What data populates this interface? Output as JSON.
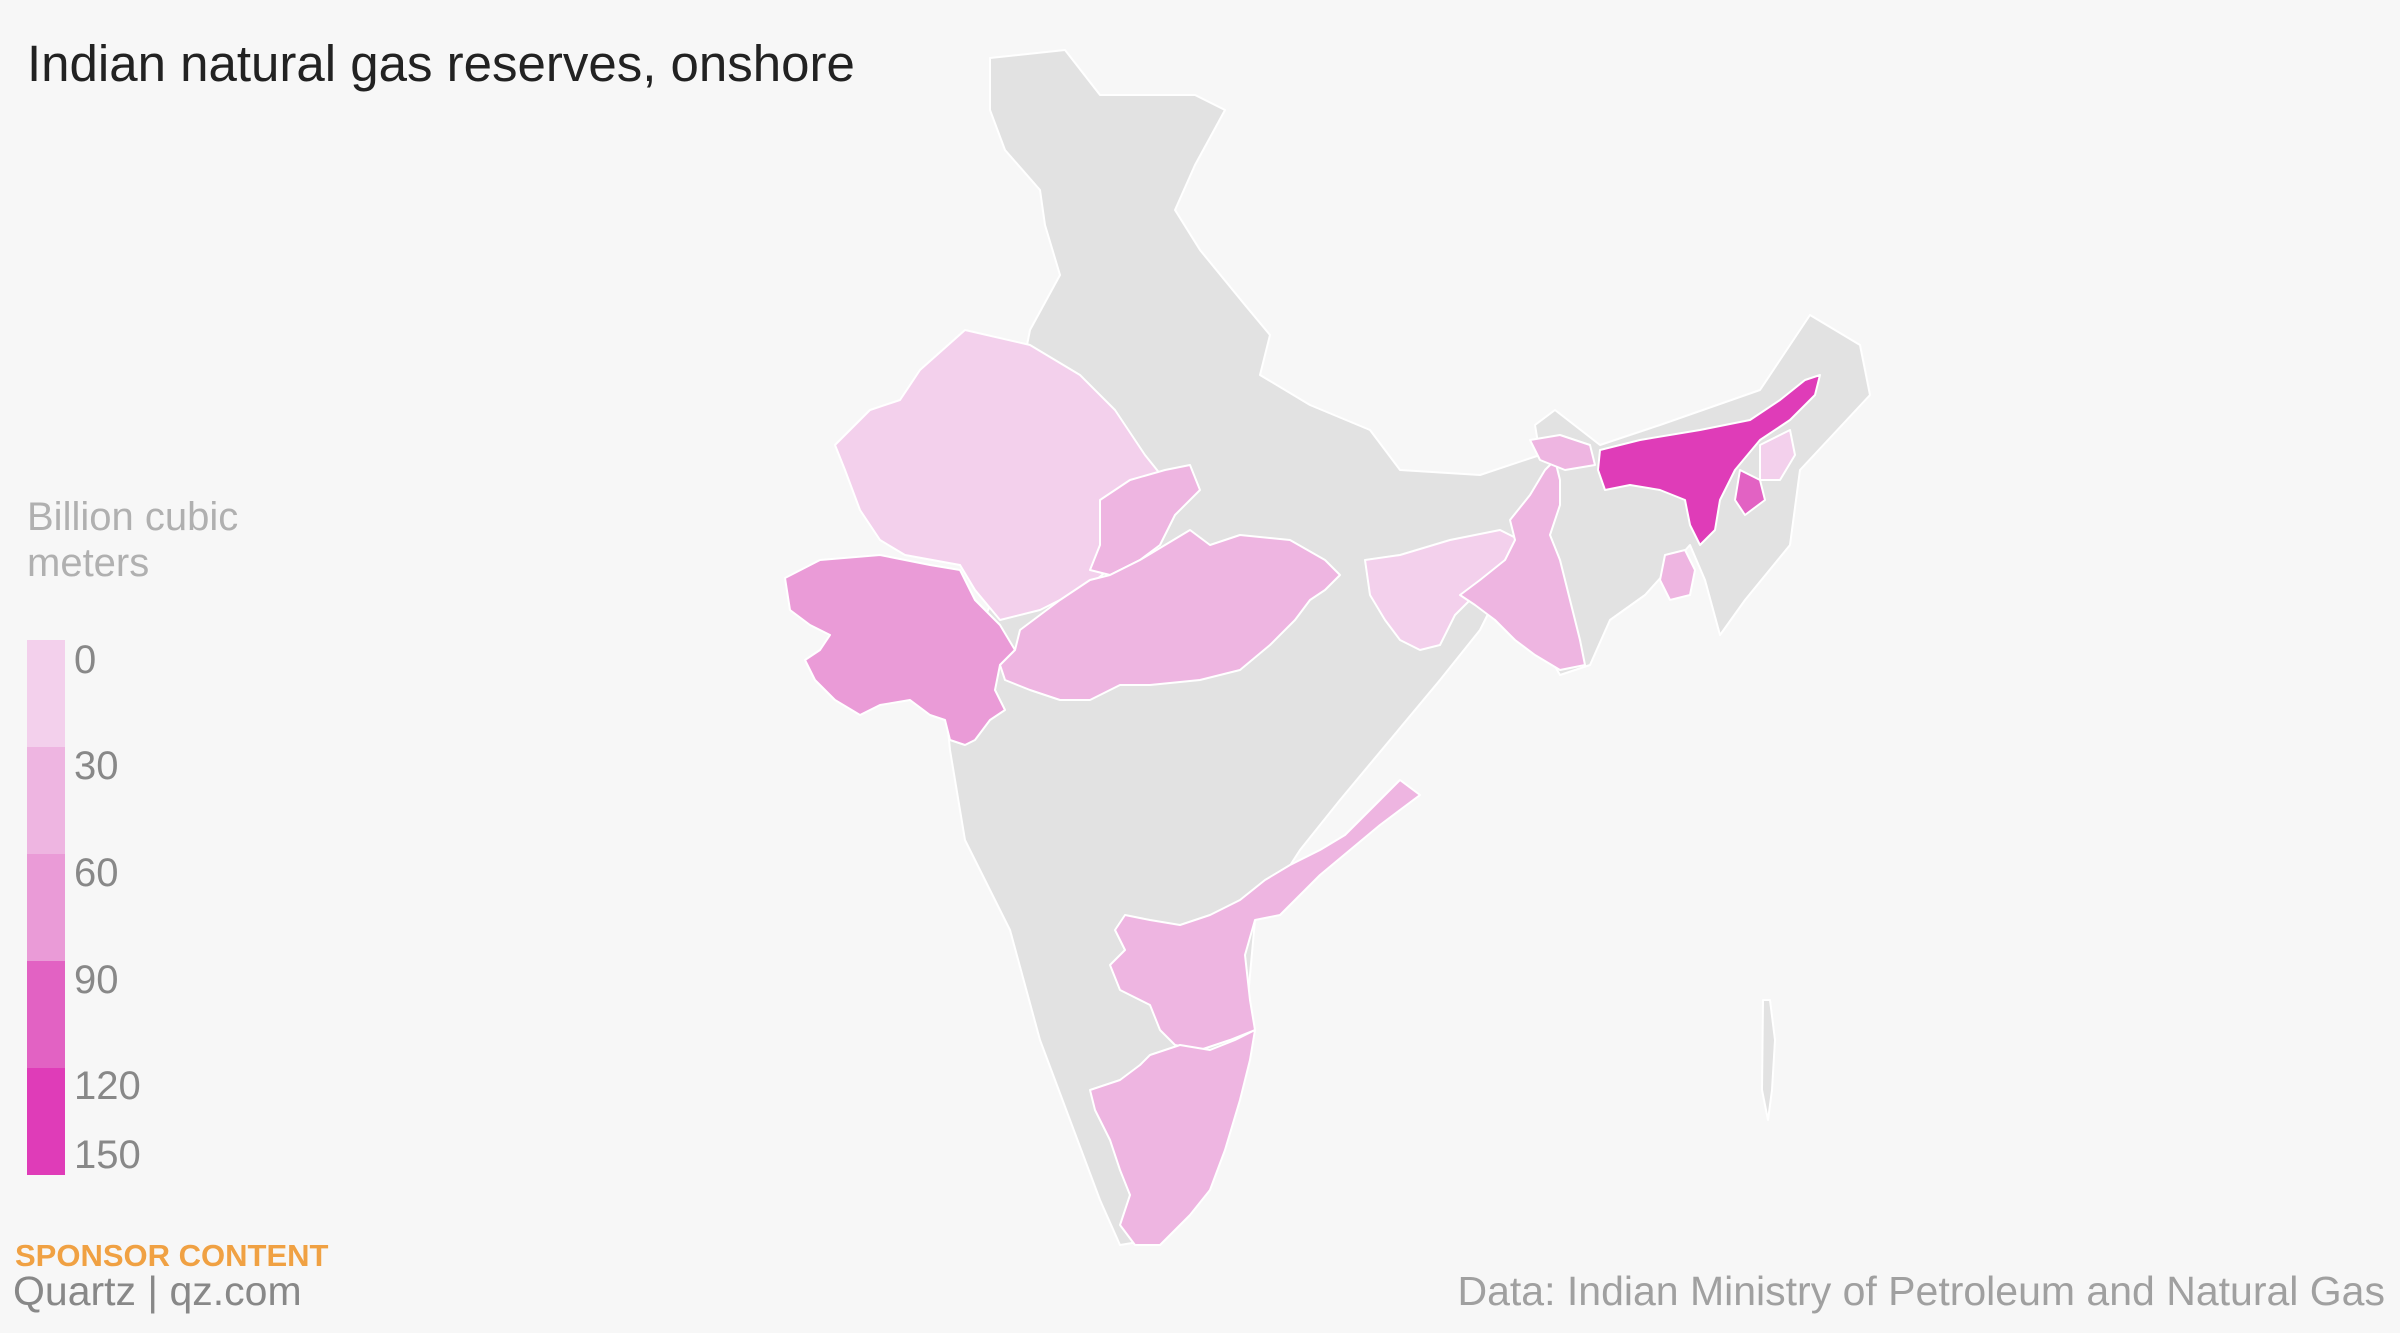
{
  "title": "Indian natural gas reserves, onshore",
  "legend": {
    "title": "Billion cubic meters",
    "bins": [
      {
        "label": "0",
        "color": "#f3d0ec"
      },
      {
        "label": "30",
        "color": "#eeb5e1"
      },
      {
        "label": "60",
        "color": "#ea9bd7"
      },
      {
        "label": "90",
        "color": "#e680cd"
      },
      {
        "label": "120",
        "color": "#e262c3"
      },
      {
        "label": "150",
        "color": "#df3cb8"
      }
    ]
  },
  "no_data_color": "#e2e2e2",
  "map_data": {
    "regions": [
      {
        "name": "Rajasthan",
        "band": 0
      },
      {
        "name": "Gujarat",
        "band": 2
      },
      {
        "name": "Madhya Pradesh",
        "band": 1
      },
      {
        "name": "Uttar Pradesh",
        "band": 1
      },
      {
        "name": "Jharkhand",
        "band": 0
      },
      {
        "name": "West Bengal",
        "band": 1
      },
      {
        "name": "Tripura",
        "band": 1
      },
      {
        "name": "Assam",
        "band": 5
      },
      {
        "name": "Nagaland",
        "band": 4
      },
      {
        "name": "Arunachal Pradesh",
        "band": 0
      },
      {
        "name": "Andhra Pradesh",
        "band": 1
      },
      {
        "name": "Tamil Nadu",
        "band": 1
      }
    ]
  },
  "footer": {
    "sponsor": "SPONSOR CONTENT",
    "brand": "Quartz | qz.com",
    "source": "Data: Indian Ministry of Petroleum and Natural Gas"
  }
}
